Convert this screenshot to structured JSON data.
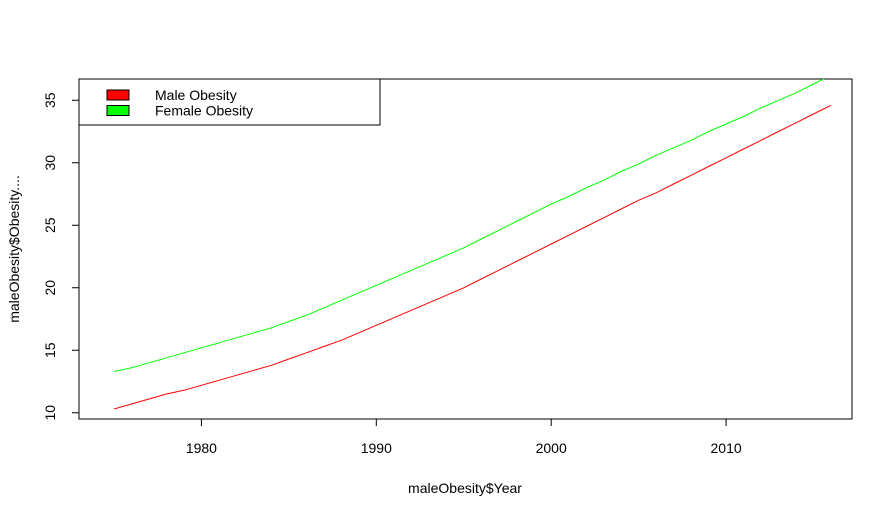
{
  "chart_data": {
    "type": "line",
    "title": "",
    "xlabel": "maleObesity$Year",
    "ylabel": "maleObesity$Obesity....",
    "xlim": [
      1973,
      2017.2
    ],
    "ylim": [
      9.5,
      36.7
    ],
    "xticks": [
      1980,
      1990,
      2000,
      2010
    ],
    "yticks": [
      10,
      15,
      20,
      25,
      30,
      35
    ],
    "grid": false,
    "legend_position": "top-left",
    "x": [
      1975,
      1976,
      1977,
      1978,
      1979,
      1980,
      1981,
      1982,
      1983,
      1984,
      1985,
      1986,
      1987,
      1988,
      1989,
      1990,
      1991,
      1992,
      1993,
      1994,
      1995,
      1996,
      1997,
      1998,
      1999,
      2000,
      2001,
      2002,
      2003,
      2004,
      2005,
      2006,
      2007,
      2008,
      2009,
      2010,
      2011,
      2012,
      2013,
      2014,
      2015,
      2016
    ],
    "series": [
      {
        "name": "Male Obesity",
        "color": "#ff0000",
        "values": [
          10.3,
          10.7,
          11.1,
          11.5,
          11.8,
          12.2,
          12.6,
          13.0,
          13.4,
          13.8,
          14.3,
          14.8,
          15.3,
          15.8,
          16.4,
          17.0,
          17.6,
          18.2,
          18.8,
          19.4,
          20.0,
          20.7,
          21.4,
          22.1,
          22.8,
          23.5,
          24.2,
          24.9,
          25.6,
          26.3,
          27.0,
          27.6,
          28.3,
          29.0,
          29.7,
          30.4,
          31.1,
          31.8,
          32.5,
          33.2,
          33.9,
          34.6
        ]
      },
      {
        "name": "Female Obesity",
        "color": "#00ff00",
        "values": [
          13.3,
          13.6,
          14.0,
          14.4,
          14.8,
          15.2,
          15.6,
          16.0,
          16.4,
          16.8,
          17.3,
          17.8,
          18.4,
          19.0,
          19.6,
          20.2,
          20.8,
          21.4,
          22.0,
          22.6,
          23.2,
          23.9,
          24.6,
          25.3,
          26.0,
          26.7,
          27.3,
          28.0,
          28.6,
          29.3,
          29.9,
          30.6,
          31.2,
          31.8,
          32.5,
          33.1,
          33.7,
          34.4,
          35.0,
          35.6,
          36.3,
          37.0
        ]
      }
    ]
  }
}
